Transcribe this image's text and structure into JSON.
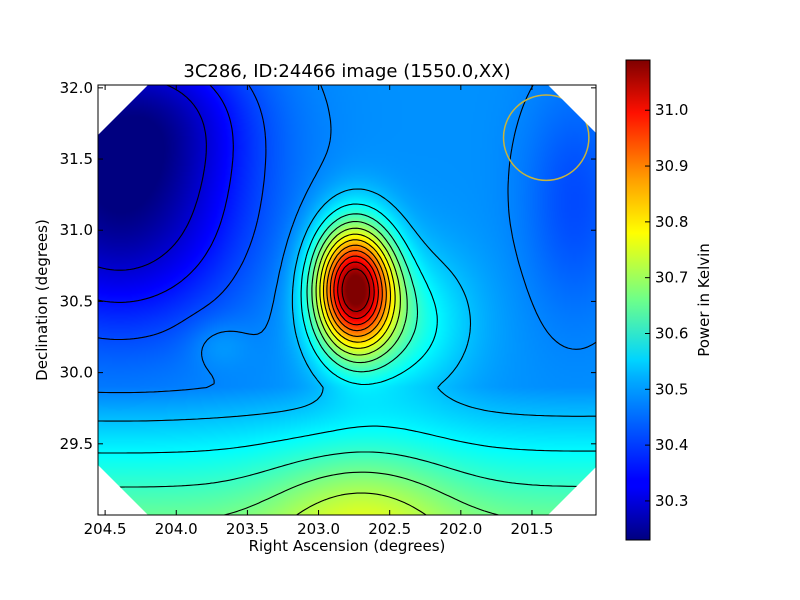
{
  "chart_data": {
    "type": "heatmap",
    "title": "3C286, ID:24466 image (1550.0,XX)",
    "xlabel": "Right Ascension (degrees)",
    "ylabel": "Declination (degrees)",
    "xlim": [
      204.55,
      201.05
    ],
    "ylim": [
      29.0,
      32.02
    ],
    "x_ticks": [
      "204.5",
      "204.0",
      "203.5",
      "203.0",
      "202.5",
      "202.0",
      "201.5"
    ],
    "y_ticks": [
      "29.5",
      "30.0",
      "30.5",
      "31.0",
      "31.5",
      "32.0"
    ],
    "colorbar": {
      "label": "Power in Kelvin",
      "range": [
        30.23,
        31.09
      ],
      "ticks": [
        "30.3",
        "30.4",
        "30.5",
        "30.6",
        "30.7",
        "30.8",
        "30.9",
        "31.0"
      ],
      "colormap": "jet"
    },
    "peak": {
      "ra": 202.75,
      "dec": 30.6,
      "value": 31.09
    },
    "minimum": {
      "ra": 204.4,
      "dec": 31.2,
      "value": 30.23
    },
    "beam_circle": {
      "ra": 201.4,
      "dec": 31.65,
      "radius_deg": 0.3,
      "color": "#c8b43c"
    },
    "masked_color": "#ffffff"
  }
}
